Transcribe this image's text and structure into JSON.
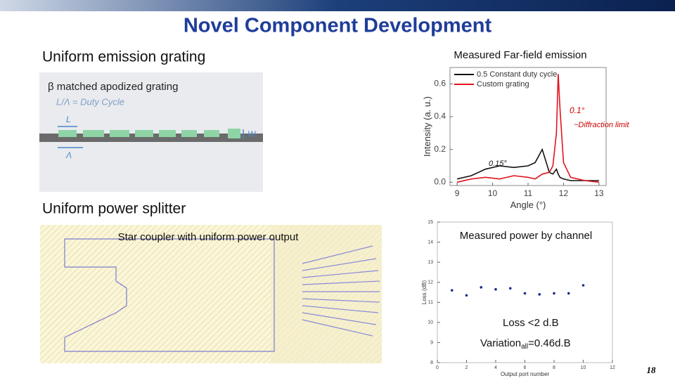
{
  "title": "Novel Component Development",
  "left": {
    "grating_heading": "Uniform emission grating",
    "grating_caption": "β matched apodized grating",
    "duty_cycle": "L/Λ = Duty Cycle",
    "label_l": "L",
    "label_w": "W",
    "label_lambda": "Λ",
    "splitter_heading": "Uniform power splitter",
    "splitter_caption": "Star coupler with uniform power output"
  },
  "page_number": "18",
  "chart_data": [
    {
      "type": "line",
      "title": "Measured Far-field emission",
      "x_label": "Angle (°)",
      "y_label": "Intensity (a. u.)",
      "x": [
        9.0,
        9.4,
        9.8,
        10.2,
        10.6,
        11.0,
        11.2,
        11.4,
        11.6,
        11.7,
        11.8,
        11.85,
        11.9,
        12.0,
        12.2,
        12.6,
        13.0
      ],
      "series": [
        {
          "name": "0.5 Constant duty cycle",
          "color": "#111111",
          "values": [
            0.02,
            0.04,
            0.08,
            0.1,
            0.09,
            0.1,
            0.12,
            0.2,
            0.06,
            0.05,
            0.08,
            0.05,
            0.03,
            0.02,
            0.01,
            0.01,
            0.01
          ]
        },
        {
          "name": "Custom grating",
          "color": "#e0141e",
          "values": [
            0.0,
            0.02,
            0.03,
            0.02,
            0.04,
            0.03,
            0.02,
            0.05,
            0.06,
            0.1,
            0.3,
            0.66,
            0.45,
            0.12,
            0.03,
            0.01,
            0.0
          ]
        }
      ],
      "xlim": [
        8.8,
        13.2
      ],
      "ylim": [
        -0.02,
        0.7
      ],
      "xticks": [
        9,
        10,
        11,
        12,
        13
      ],
      "yticks": [
        {
          "value": 0,
          "label": "0.0"
        },
        0.2,
        0.4,
        0.6
      ],
      "legend": "upper left",
      "annotations": [
        "0.1°",
        "~Diffraction limit",
        "0.15°"
      ]
    },
    {
      "type": "scatter",
      "title": "Measured power by channel",
      "x_label": "Output port number",
      "y_label": "Loss (dB)",
      "x": [
        1,
        2,
        3,
        4,
        5,
        6,
        7,
        8,
        9,
        10
      ],
      "values": [
        11.6,
        11.35,
        11.75,
        11.65,
        11.7,
        11.45,
        11.4,
        11.45,
        11.45,
        11.85
      ],
      "color": "#1a2a8a",
      "xlim": [
        0,
        12
      ],
      "ylim": [
        8,
        15
      ],
      "xticks": [
        0,
        2,
        4,
        6,
        8,
        10,
        12
      ],
      "yticks": [
        8,
        9,
        10,
        11,
        12,
        13,
        14,
        15
      ],
      "annotations": [
        "Loss <2 d.B",
        "Variation",
        "all",
        "=0.46d.B"
      ]
    }
  ]
}
